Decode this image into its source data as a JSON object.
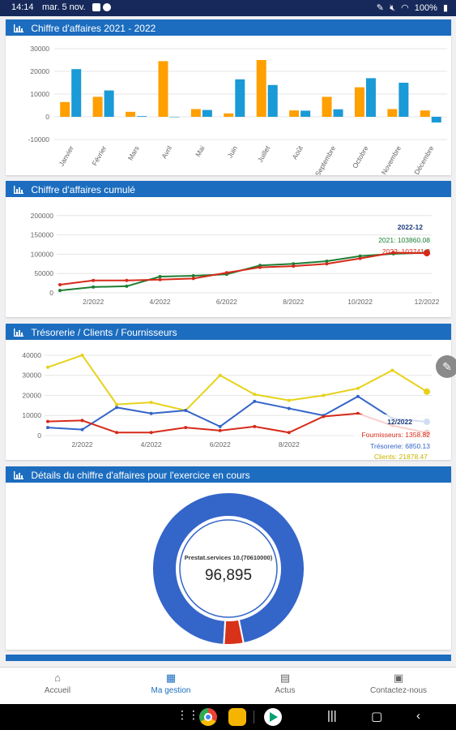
{
  "status_bar": {
    "time": "14:14",
    "date": "mar. 5 nov.",
    "battery": "100%"
  },
  "colors": {
    "header": "#1c6dbf",
    "orange": "#ff9f00",
    "blue": "#1a9ad6",
    "green": "#1e7e34",
    "red": "#d62a1a",
    "yellow": "#e6d21a",
    "donut_blue": "#3465c9",
    "donut_red": "#d8331a"
  },
  "cards": {
    "ca_2021_2022": {
      "title": "Chiffre d'affaires 2021 - 2022"
    },
    "ca_cumule": {
      "title": "Chiffre d'affaires cumulé"
    },
    "tresorerie": {
      "title": "Trésorerie / Clients / Fournisseurs"
    },
    "details": {
      "title": "Détails du chiffre d'affaires pour l'exercice en cours"
    }
  },
  "chart_data": [
    {
      "type": "bar",
      "title": "Chiffre d'affaires 2021 - 2022",
      "categories": [
        "Janvier",
        "Février",
        "Mars",
        "Avril",
        "Mai",
        "Juin",
        "Juillet",
        "Août",
        "Septembre",
        "Octobre",
        "Novembre",
        "Décembre"
      ],
      "series": [
        {
          "values": [
            6500,
            8800,
            2200,
            24500,
            3400,
            1500,
            25000,
            2800,
            8800,
            13000,
            3400,
            2800
          ]
        },
        {
          "values": [
            21000,
            11600,
            300,
            0,
            3000,
            16500,
            14000,
            2700,
            3300,
            17000,
            15000,
            -2500
          ]
        }
      ],
      "ylim": [
        -10000,
        30000
      ],
      "yticks": [
        "30000",
        "20000",
        "10000",
        "0",
        "-10000"
      ]
    },
    {
      "type": "line",
      "title": "Chiffre d'affaires cumulé",
      "x": [
        1,
        2,
        3,
        4,
        5,
        6,
        7,
        8,
        9,
        10,
        11,
        12
      ],
      "xticks": [
        "2/2022",
        "4/2022",
        "6/2022",
        "8/2022",
        "10/2022",
        "12/2022"
      ],
      "yticks": [
        "200000",
        "150000",
        "100000",
        "50000",
        "0"
      ],
      "ylim": [
        0,
        210000
      ],
      "series": [
        {
          "name": "2021",
          "values": [
            6000,
            15000,
            17000,
            42000,
            44000,
            48000,
            71000,
            75000,
            82000,
            95000,
            101000,
            103860
          ]
        },
        {
          "name": "2022",
          "values": [
            21000,
            32000,
            32000,
            34000,
            37000,
            52000,
            66000,
            69000,
            75000,
            89000,
            104000,
            102741
          ]
        }
      ],
      "tooltip": {
        "title": "2022-12",
        "line1": "2021: 103860.08",
        "line2": "2022: 102741.2"
      }
    },
    {
      "type": "line",
      "title": "Trésorerie / Clients / Fournisseurs",
      "x": [
        1,
        2,
        3,
        4,
        5,
        6,
        7,
        8,
        9,
        10,
        11,
        12
      ],
      "xticks": [
        "2/2022",
        "4/2022",
        "6/2022",
        "8/2022"
      ],
      "yticks": [
        "40000",
        "30000",
        "20000",
        "10000",
        "0"
      ],
      "ylim": [
        0,
        42000
      ],
      "series": [
        {
          "name": "Clients",
          "values": [
            34000,
            40000,
            15500,
            16500,
            12500,
            30000,
            20500,
            17500,
            20000,
            23500,
            32500,
            21878
          ]
        },
        {
          "name": "Trésorerie",
          "values": [
            4000,
            3000,
            14000,
            11000,
            12500,
            4500,
            17000,
            13500,
            10000,
            19500,
            8500,
            6850
          ]
        },
        {
          "name": "Fournisseurs",
          "values": [
            7000,
            7500,
            1500,
            1500,
            4000,
            2500,
            4500,
            1500,
            9500,
            11000,
            5000,
            1359
          ]
        }
      ],
      "tooltip": {
        "title": "12/2022",
        "line1": "Fournisseurs: 1358.82",
        "line2": "Trésorerie: 6850.13",
        "line3": "Clients: 21878.47"
      }
    },
    {
      "type": "pie",
      "title": "Détails du chiffre d'affaires pour l'exercice en cours",
      "slices": [
        {
          "label": "Prestat.services 10.(70610000)",
          "value": 96895
        },
        {
          "value": 4200
        }
      ],
      "center_label": "Prestat.services 10.(70610000)",
      "center_value": "96,895"
    }
  ],
  "bottom_nav": {
    "items": [
      {
        "label": "Accueil",
        "icon": "home-icon"
      },
      {
        "label": "Ma gestion",
        "icon": "calculator-icon",
        "active": true
      },
      {
        "label": "Actus",
        "icon": "news-icon"
      },
      {
        "label": "Contactez-nous",
        "icon": "contact-card-icon"
      }
    ]
  }
}
